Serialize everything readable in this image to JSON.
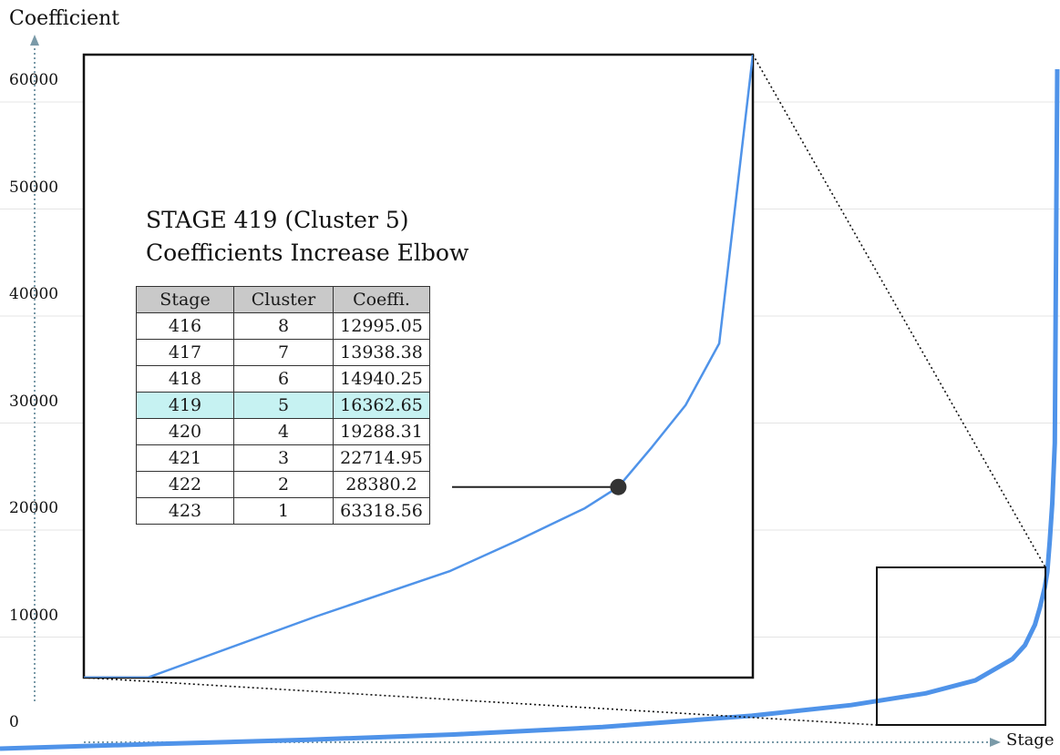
{
  "chart_data": {
    "type": "line",
    "title": "",
    "xlabel": "Stage",
    "ylabel": "Coefficient",
    "yticks": [
      0,
      10000,
      20000,
      30000,
      40000,
      50000,
      60000
    ],
    "ylim": [
      0,
      63318.56
    ],
    "xlim": [
      1,
      423
    ],
    "grid": true,
    "series": [
      {
        "color": "#4f93e9",
        "x": [
          1,
          60,
          120,
          180,
          240,
          300,
          340,
          370,
          390,
          405,
          410,
          414,
          416,
          417,
          418,
          419,
          420,
          421,
          422,
          423
        ],
        "y": [
          0,
          260,
          650,
          1150,
          1850,
          2900,
          3900,
          5000,
          6200,
          8200,
          9500,
          11400,
          12995.05,
          13938.38,
          14940.25,
          16362.65,
          19288.31,
          22714.95,
          28380.2,
          63318.56
        ]
      }
    ],
    "inset": {
      "xlim": [
        380,
        423
      ],
      "ylim": [
        1000,
        63318.56
      ]
    },
    "annotation": {
      "line1": "STAGE 419 (Cluster 5)",
      "line2": "Coefficients Increase Elbow",
      "stage": 419,
      "value": 16362.65
    },
    "table": {
      "headers": [
        "Stage",
        "Cluster",
        "Coeffi."
      ],
      "rows": [
        [
          "416",
          "8",
          "12995.05"
        ],
        [
          "417",
          "7",
          "13938.38"
        ],
        [
          "418",
          "6",
          "14940.25"
        ],
        [
          "419",
          "5",
          "16362.65"
        ],
        [
          "420",
          "4",
          "19288.31"
        ],
        [
          "421",
          "3",
          "22714.95"
        ],
        [
          "422",
          "2",
          "28380.2"
        ],
        [
          "423",
          "1",
          "63318.56"
        ]
      ],
      "highlight_stage": "419"
    }
  }
}
